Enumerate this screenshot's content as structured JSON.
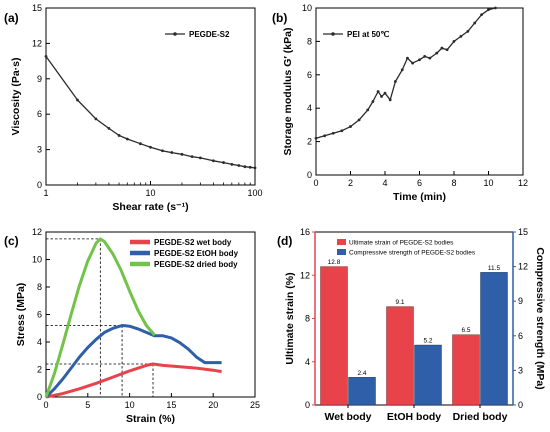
{
  "chart_data": [
    {
      "panel": "(a)",
      "type": "line",
      "xlabel": "Shear rate (s⁻¹)",
      "ylabel": "Viscosity (Pa·s)",
      "xscale": "log",
      "xlim": [
        1,
        100
      ],
      "ylim": [
        0,
        15
      ],
      "xticks": [
        "1",
        "10",
        "100"
      ],
      "yticks": [
        "0",
        "3",
        "6",
        "9",
        "12",
        "15"
      ],
      "grid": false,
      "legend": "top-right",
      "series": [
        {
          "name": "PEGDE-S2",
          "color": "#2b2b2b",
          "x": [
            1,
            2,
            3,
            4,
            5,
            6,
            8,
            10,
            13,
            16,
            20,
            25,
            30,
            40,
            50,
            60,
            70,
            80,
            90,
            100
          ],
          "y": [
            10.9,
            7.2,
            5.6,
            4.8,
            4.2,
            3.9,
            3.5,
            3.2,
            2.9,
            2.75,
            2.6,
            2.4,
            2.3,
            2.05,
            1.9,
            1.75,
            1.65,
            1.55,
            1.5,
            1.45
          ]
        }
      ]
    },
    {
      "panel": "(b)",
      "type": "line",
      "xlabel": "Time (min)",
      "ylabel": "Storage modulus G′ (kPa)",
      "xlim": [
        0,
        12
      ],
      "ylim": [
        0,
        10
      ],
      "xticks": [
        "0",
        "2",
        "4",
        "6",
        "8",
        "10",
        "12"
      ],
      "yticks": [
        "0",
        "2",
        "4",
        "6",
        "8",
        "10"
      ],
      "grid": false,
      "legend": "top-left",
      "series": [
        {
          "name": "PEI at 50℃",
          "color": "#2b2b2b",
          "x": [
            0,
            0.5,
            1,
            1.5,
            2,
            2.5,
            3,
            3.3,
            3.6,
            3.8,
            4.0,
            4.3,
            4.6,
            5.0,
            5.3,
            5.6,
            6.0,
            6.3,
            6.6,
            7.0,
            7.3,
            7.6,
            8.0,
            8.4,
            8.8,
            9.2,
            9.6,
            10.0,
            10.4
          ],
          "y": [
            2.2,
            2.35,
            2.5,
            2.65,
            2.9,
            3.3,
            3.9,
            4.4,
            5.0,
            4.7,
            4.9,
            4.5,
            5.6,
            6.3,
            7.0,
            6.7,
            6.9,
            7.1,
            7.0,
            7.3,
            7.6,
            7.5,
            8.0,
            8.3,
            8.6,
            9.1,
            9.6,
            9.9,
            10.0
          ]
        }
      ]
    },
    {
      "panel": "(c)",
      "type": "line",
      "xlabel": "Strain (%)",
      "ylabel": "Stress (MPa)",
      "xlim": [
        0,
        25
      ],
      "ylim": [
        0,
        12
      ],
      "xticks": [
        "0",
        "5",
        "10",
        "15",
        "20",
        "25"
      ],
      "yticks": [
        "0",
        "2",
        "4",
        "6",
        "8",
        "10",
        "12"
      ],
      "grid": false,
      "legend": "top-right",
      "series": [
        {
          "name": "PEGDE-S2 wet body",
          "color": "#e8434b",
          "x": [
            0,
            2,
            4,
            6,
            8,
            10,
            12,
            12.8,
            14,
            16,
            18,
            20,
            21
          ],
          "y": [
            0,
            0.25,
            0.6,
            1.0,
            1.45,
            1.9,
            2.3,
            2.4,
            2.3,
            2.2,
            2.1,
            1.95,
            1.85
          ]
        },
        {
          "name": "PEGDE-S2 EtOH body",
          "color": "#2e5fa8",
          "x": [
            0,
            1,
            2,
            3,
            4,
            5,
            6,
            7,
            8,
            9.1,
            10,
            11,
            12,
            13,
            14,
            15,
            16,
            17,
            18,
            19,
            20,
            21
          ],
          "y": [
            0,
            0.6,
            1.3,
            2.1,
            2.9,
            3.6,
            4.2,
            4.7,
            5.0,
            5.2,
            5.15,
            4.95,
            4.7,
            4.45,
            4.45,
            4.3,
            3.95,
            3.5,
            2.9,
            2.5,
            2.5,
            2.5
          ]
        },
        {
          "name": "PEGDE-S2 dried body",
          "color": "#72c349",
          "x": [
            0,
            1,
            2,
            3,
            4,
            5,
            6,
            6.5,
            7,
            8,
            9,
            10,
            11,
            12,
            13
          ],
          "y": [
            0,
            1.7,
            3.8,
            6.0,
            8.1,
            9.9,
            11.2,
            11.5,
            11.3,
            10.4,
            9.2,
            7.7,
            6.3,
            5.2,
            4.5
          ]
        }
      ]
    },
    {
      "panel": "(d)",
      "type": "bar",
      "categories": [
        "Wet body",
        "EtOH body",
        "Dried body"
      ],
      "ylabel": "Ultimate strain (%)",
      "y2label": "Compressive strength (MPa)",
      "ylim": [
        0,
        16
      ],
      "y2lim": [
        0,
        15
      ],
      "yticks": [
        "0",
        "4",
        "8",
        "12",
        "16"
      ],
      "y2ticks": [
        "0",
        "3",
        "6",
        "9",
        "12",
        "15"
      ],
      "grid": false,
      "legend": "top-left",
      "series": [
        {
          "name": "Ultimate strain of PEGDE-S2 bodies",
          "axis": "left",
          "color": "#e8434b",
          "values": [
            12.8,
            9.1,
            6.5
          ],
          "labels": [
            "12.8",
            "9.1",
            "6.5"
          ]
        },
        {
          "name": "Compressive strength of PEGDE-S2 bodies",
          "axis": "right",
          "color": "#2e5fa8",
          "values": [
            2.4,
            5.2,
            11.5
          ],
          "labels": [
            "2.4",
            "5.2",
            "11.5"
          ]
        }
      ]
    }
  ]
}
